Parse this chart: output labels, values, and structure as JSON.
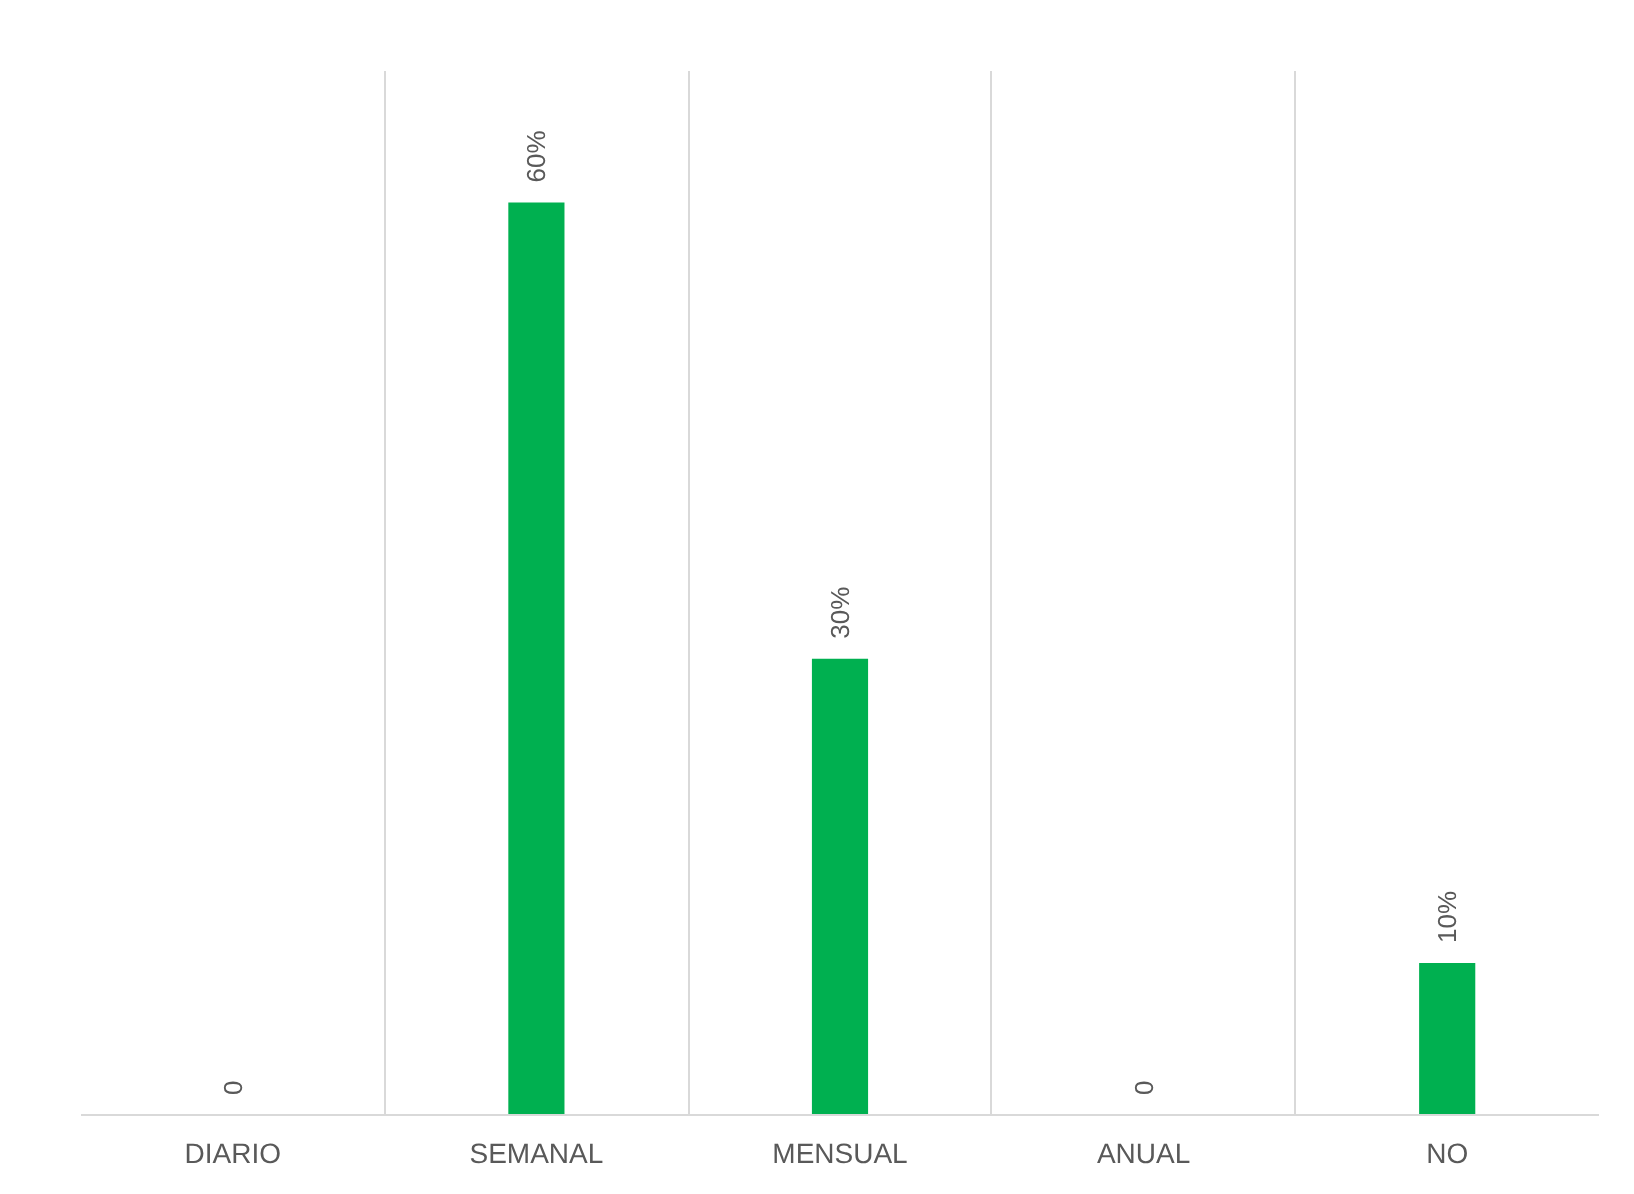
{
  "chart_data": {
    "type": "bar",
    "categories": [
      "DIARIO",
      "SEMANAL",
      "MENSUAL",
      "ANUAL",
      "NO"
    ],
    "values": [
      0,
      60,
      30,
      0,
      10
    ],
    "value_labels": [
      "0",
      "60%",
      "30%",
      "0",
      "10%"
    ],
    "color": "#00b050",
    "grid": "x"
  }
}
